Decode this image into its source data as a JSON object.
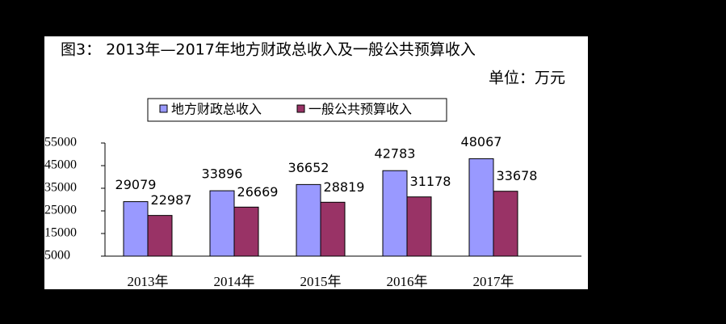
{
  "chart_data": {
    "type": "bar",
    "title": "图3： 2013年—2017年地方财政总收入及一般公共预算收入",
    "subtitle": "单位：万元",
    "categories": [
      "2013年",
      "2014年",
      "2015年",
      "2016年",
      "2017年"
    ],
    "series": [
      {
        "name": "地方财政总收入",
        "color": "#9999ff",
        "values": [
          29079,
          33896,
          36652,
          42783,
          48067
        ]
      },
      {
        "name": "一般公共预算收入",
        "color": "#993366",
        "values": [
          22987,
          26669,
          28819,
          31178,
          33678
        ]
      }
    ],
    "ylim": [
      5000,
      55000
    ],
    "yticks": [
      5000,
      15000,
      25000,
      35000,
      45000,
      55000
    ],
    "grid": false
  }
}
